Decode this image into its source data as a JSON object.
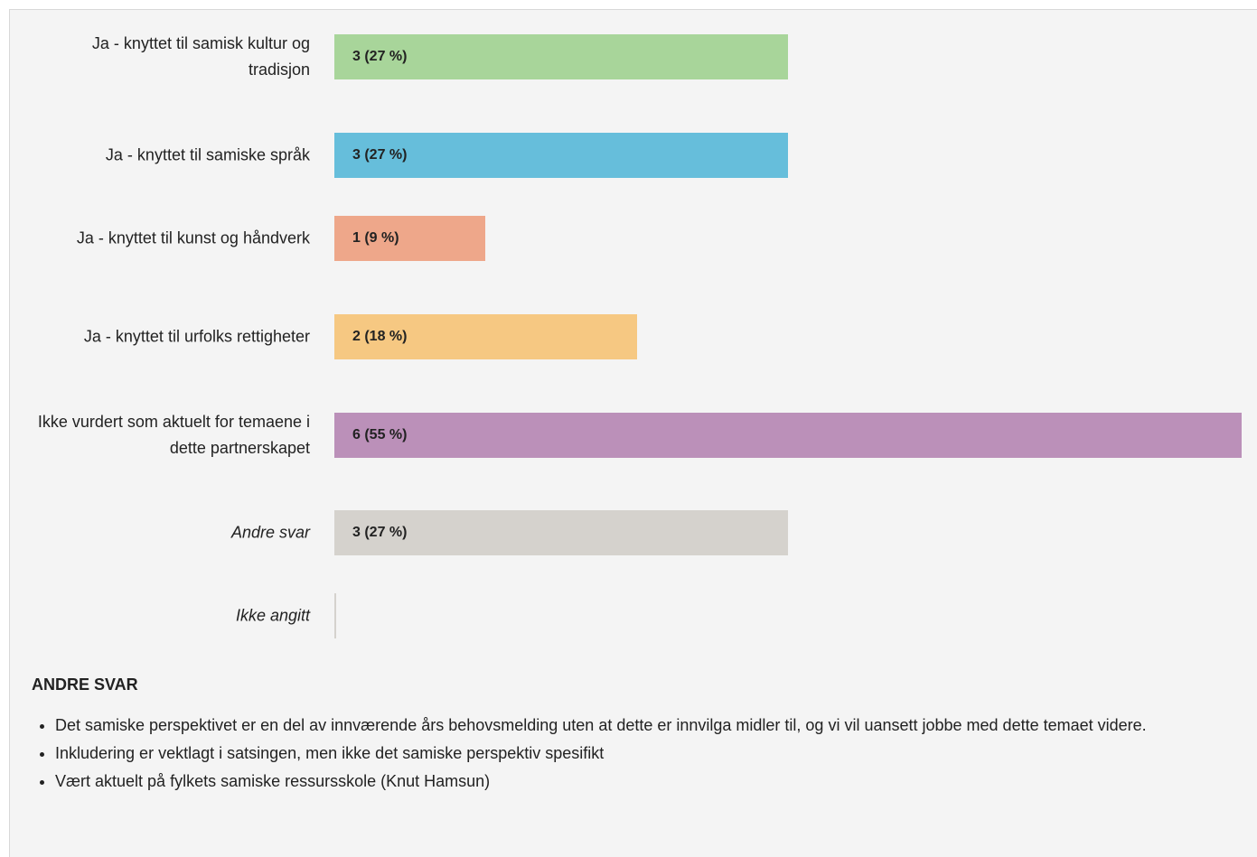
{
  "chart_data": {
    "type": "bar",
    "orientation": "horizontal",
    "categories": [
      "Ja - knyttet til samisk kultur og tradisjon",
      "Ja - knyttet til samiske språk",
      "Ja - knyttet til kunst og håndverk",
      "Ja - knyttet til urfolks rettigheter",
      "Ikke vurdert som aktuelt for temaene i dette partnerskapet",
      "Andre svar",
      "Ikke angitt"
    ],
    "values": [
      3,
      3,
      1,
      2,
      6,
      3,
      0
    ],
    "value_labels": [
      "3 (27 %)",
      "3 (27 %)",
      "1 (9 %)",
      "2 (18 %)",
      "6 (55 %)",
      "3 (27 %)",
      null
    ],
    "colors": [
      "#a8d59a",
      "#66bedb",
      "#eea78a",
      "#f6c882",
      "#bb90b9",
      "#d5d2cd",
      "#d5d2cd"
    ]
  },
  "other_answers": {
    "title": "ANDRE SVAR",
    "items": [
      "Det samiske perspektivet er en del av innværende års behovsmelding uten at dette er innvilga midler til, og vi vil uansett jobbe med dette temaet videre.",
      "Inkludering er vektlagt i satsingen, men ikke det samiske perspektiv spesifikt",
      "Vært aktuelt på fylkets samiske ressursskole (Knut Hamsun)"
    ]
  }
}
